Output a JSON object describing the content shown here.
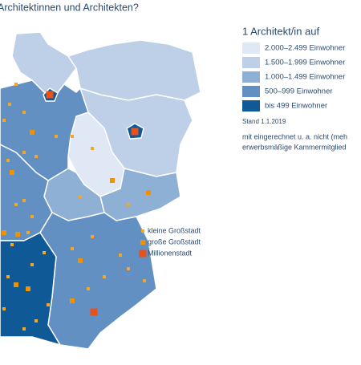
{
  "title": "Architektinnen und Architekten?",
  "legend": {
    "title": "1 Architekt/in auf",
    "items": [
      {
        "label": "2.000–2.499 Einwohner",
        "color": "#dfe8f4"
      },
      {
        "label": "1.500–1.999 Einwohner",
        "color": "#bdd0e7"
      },
      {
        "label": "1.000–1.499 Einwohner",
        "color": "#8fb0d5"
      },
      {
        "label": "500–999 Einwohner",
        "color": "#6390c3"
      },
      {
        "label": "bis 499 Einwohner",
        "color": "#0f5a96"
      }
    ]
  },
  "note": {
    "date": "Stand 1.1.2019",
    "lines": [
      "mit eingerechnet u. a. nicht (meh",
      "erwerbsmäßige Kammermitglied"
    ]
  },
  "city_legend": [
    {
      "label": "kleine Großstadt",
      "color": "#f5a623"
    },
    {
      "label": "große Großstadt",
      "color": "#f39200"
    },
    {
      "label": "Millionenstadt",
      "color": "#e8501c"
    }
  ]
}
